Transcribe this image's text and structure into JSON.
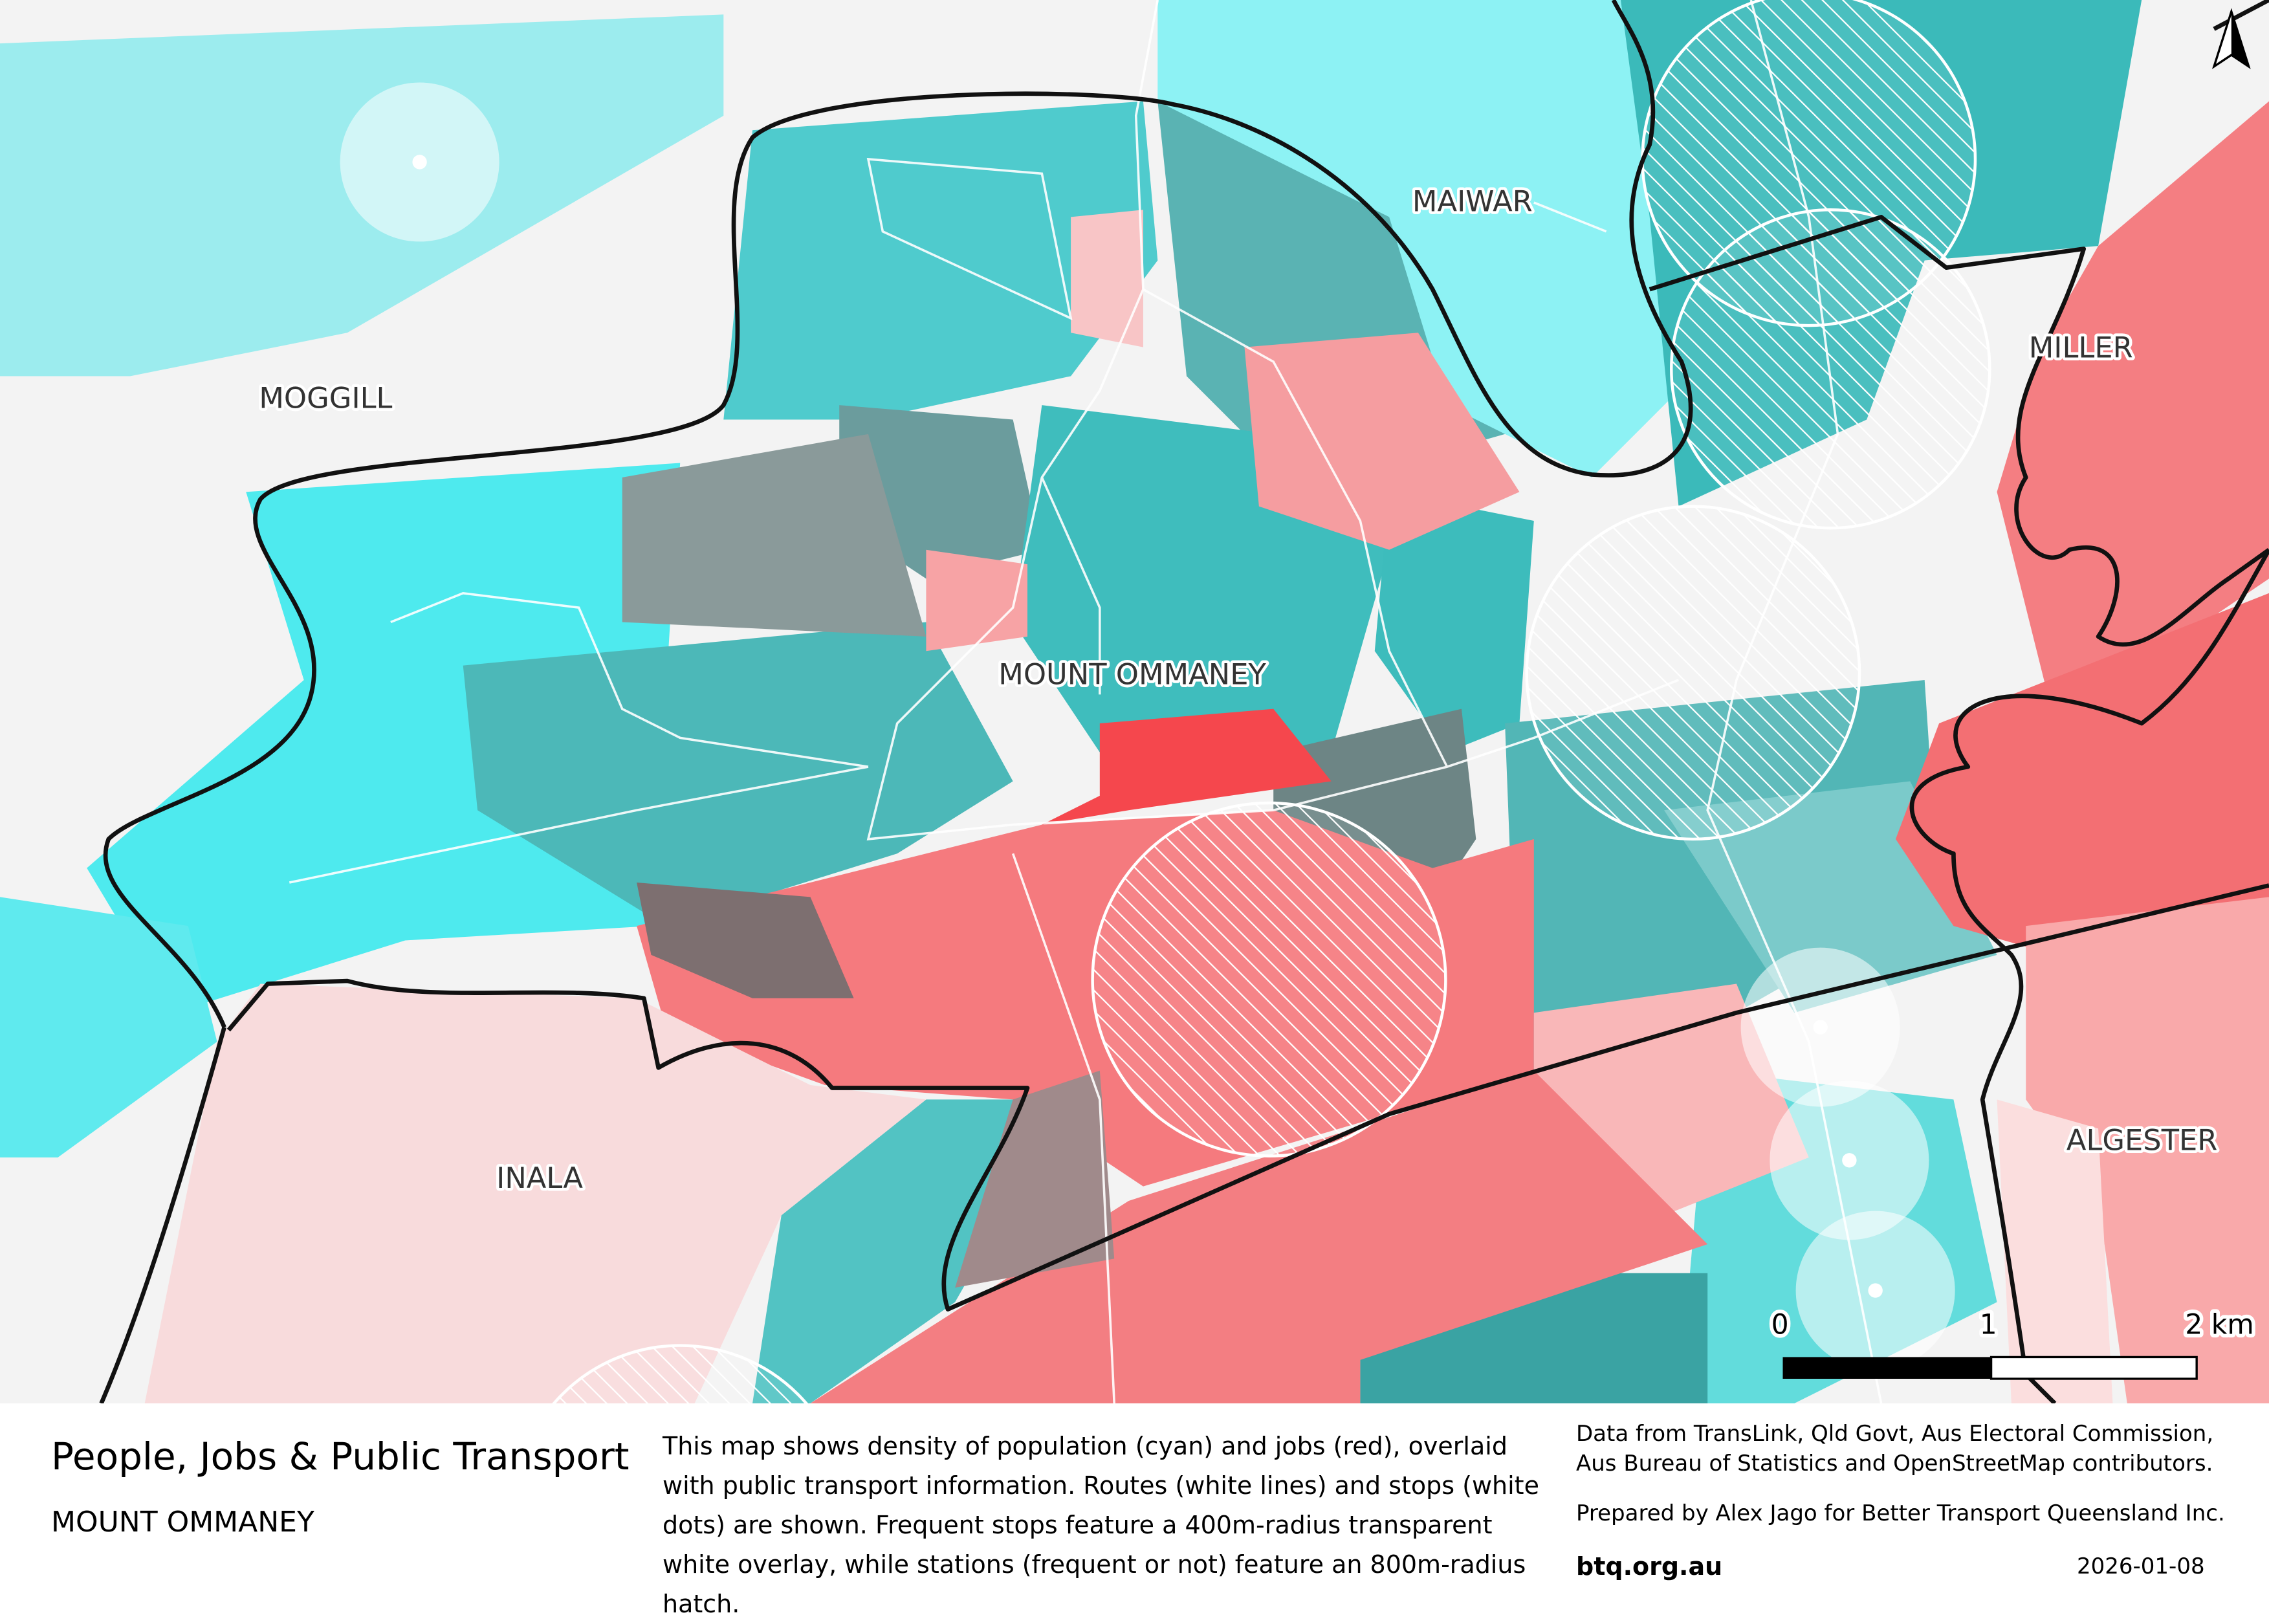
{
  "map": {
    "labels": {
      "moggill": "MOGGILL",
      "maiwar": "MAIWAR",
      "miller": "MILLER",
      "mount_ommaney": "MOUNT OMMANEY",
      "inala": "INALA",
      "algester": "ALGESTER"
    },
    "scale_bar": {
      "tick0": "0",
      "tick1": "1",
      "tick2": "2 km"
    },
    "colors": {
      "population": "#3ee6ea",
      "jobs": "#f65a5e",
      "boundary": "#111111",
      "route": "#ffffff"
    }
  },
  "footer": {
    "title": "People, Jobs & Public Transport",
    "subtitle": "MOUNT OMMANEY",
    "description": "This map shows density of population (cyan) and jobs (red), overlaid with public transport information. Routes (white lines) and stops (white dots) are shown. Frequent stops feature a 400m-radius transparent white overlay, while stations (frequent or not) feature an 800m-radius hatch.",
    "credits": "Data from TransLink,  Qld Govt,  Aus Electoral Commission, Aus Bureau of Statistics and OpenStreetMap contributors.",
    "prepared_by": "Prepared by Alex Jago for Better Transport Queensland Inc.",
    "website": "btq.org.au",
    "date": "2026-01-08"
  }
}
